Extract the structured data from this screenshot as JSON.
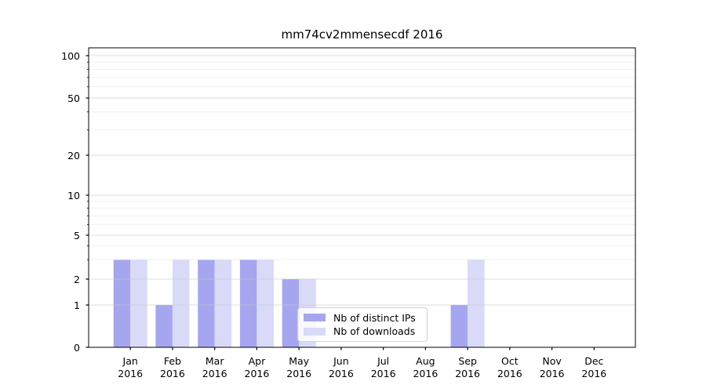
{
  "title": "mm74cv2mmensecdf 2016",
  "colors": {
    "distinct_ips": "#a6a6f0",
    "downloads": "#d9d9f8",
    "grid_major": "#c8c8c8",
    "grid_minor": "#e4e4e4",
    "axis": "#000000",
    "legend_border": "#d2d2d2",
    "background": "#ffffff"
  },
  "chart_data": {
    "type": "bar",
    "title": "mm74cv2mmensecdf 2016",
    "months": [
      "Jan",
      "Feb",
      "Mar",
      "Apr",
      "May",
      "Jun",
      "Jul",
      "Aug",
      "Sep",
      "Oct",
      "Nov",
      "Dec"
    ],
    "year": "2016",
    "categories": [
      "Jan 2016",
      "Feb 2016",
      "Mar 2016",
      "Apr 2016",
      "May 2016",
      "Jun 2016",
      "Jul 2016",
      "Aug 2016",
      "Sep 2016",
      "Oct 2016",
      "Nov 2016",
      "Dec 2016"
    ],
    "series": [
      {
        "name": "Nb of distinct IPs",
        "color": "#a6a6f0",
        "values": [
          3,
          1,
          3,
          3,
          2,
          0,
          0,
          0,
          1,
          0,
          0,
          0
        ]
      },
      {
        "name": "Nb of downloads",
        "color": "#d9d9f8",
        "values": [
          3,
          3,
          3,
          3,
          2,
          0,
          0,
          0,
          3,
          0,
          0,
          0
        ]
      }
    ],
    "yscale": "symlog",
    "yticks": [
      0,
      1,
      2,
      5,
      10,
      20,
      50,
      100
    ],
    "minor_yticks": [
      3,
      4,
      6,
      7,
      8,
      9,
      30,
      40,
      60,
      70,
      80,
      90
    ],
    "ylim": [
      0,
      110
    ],
    "grid": "on",
    "legend_position": "lower center"
  }
}
